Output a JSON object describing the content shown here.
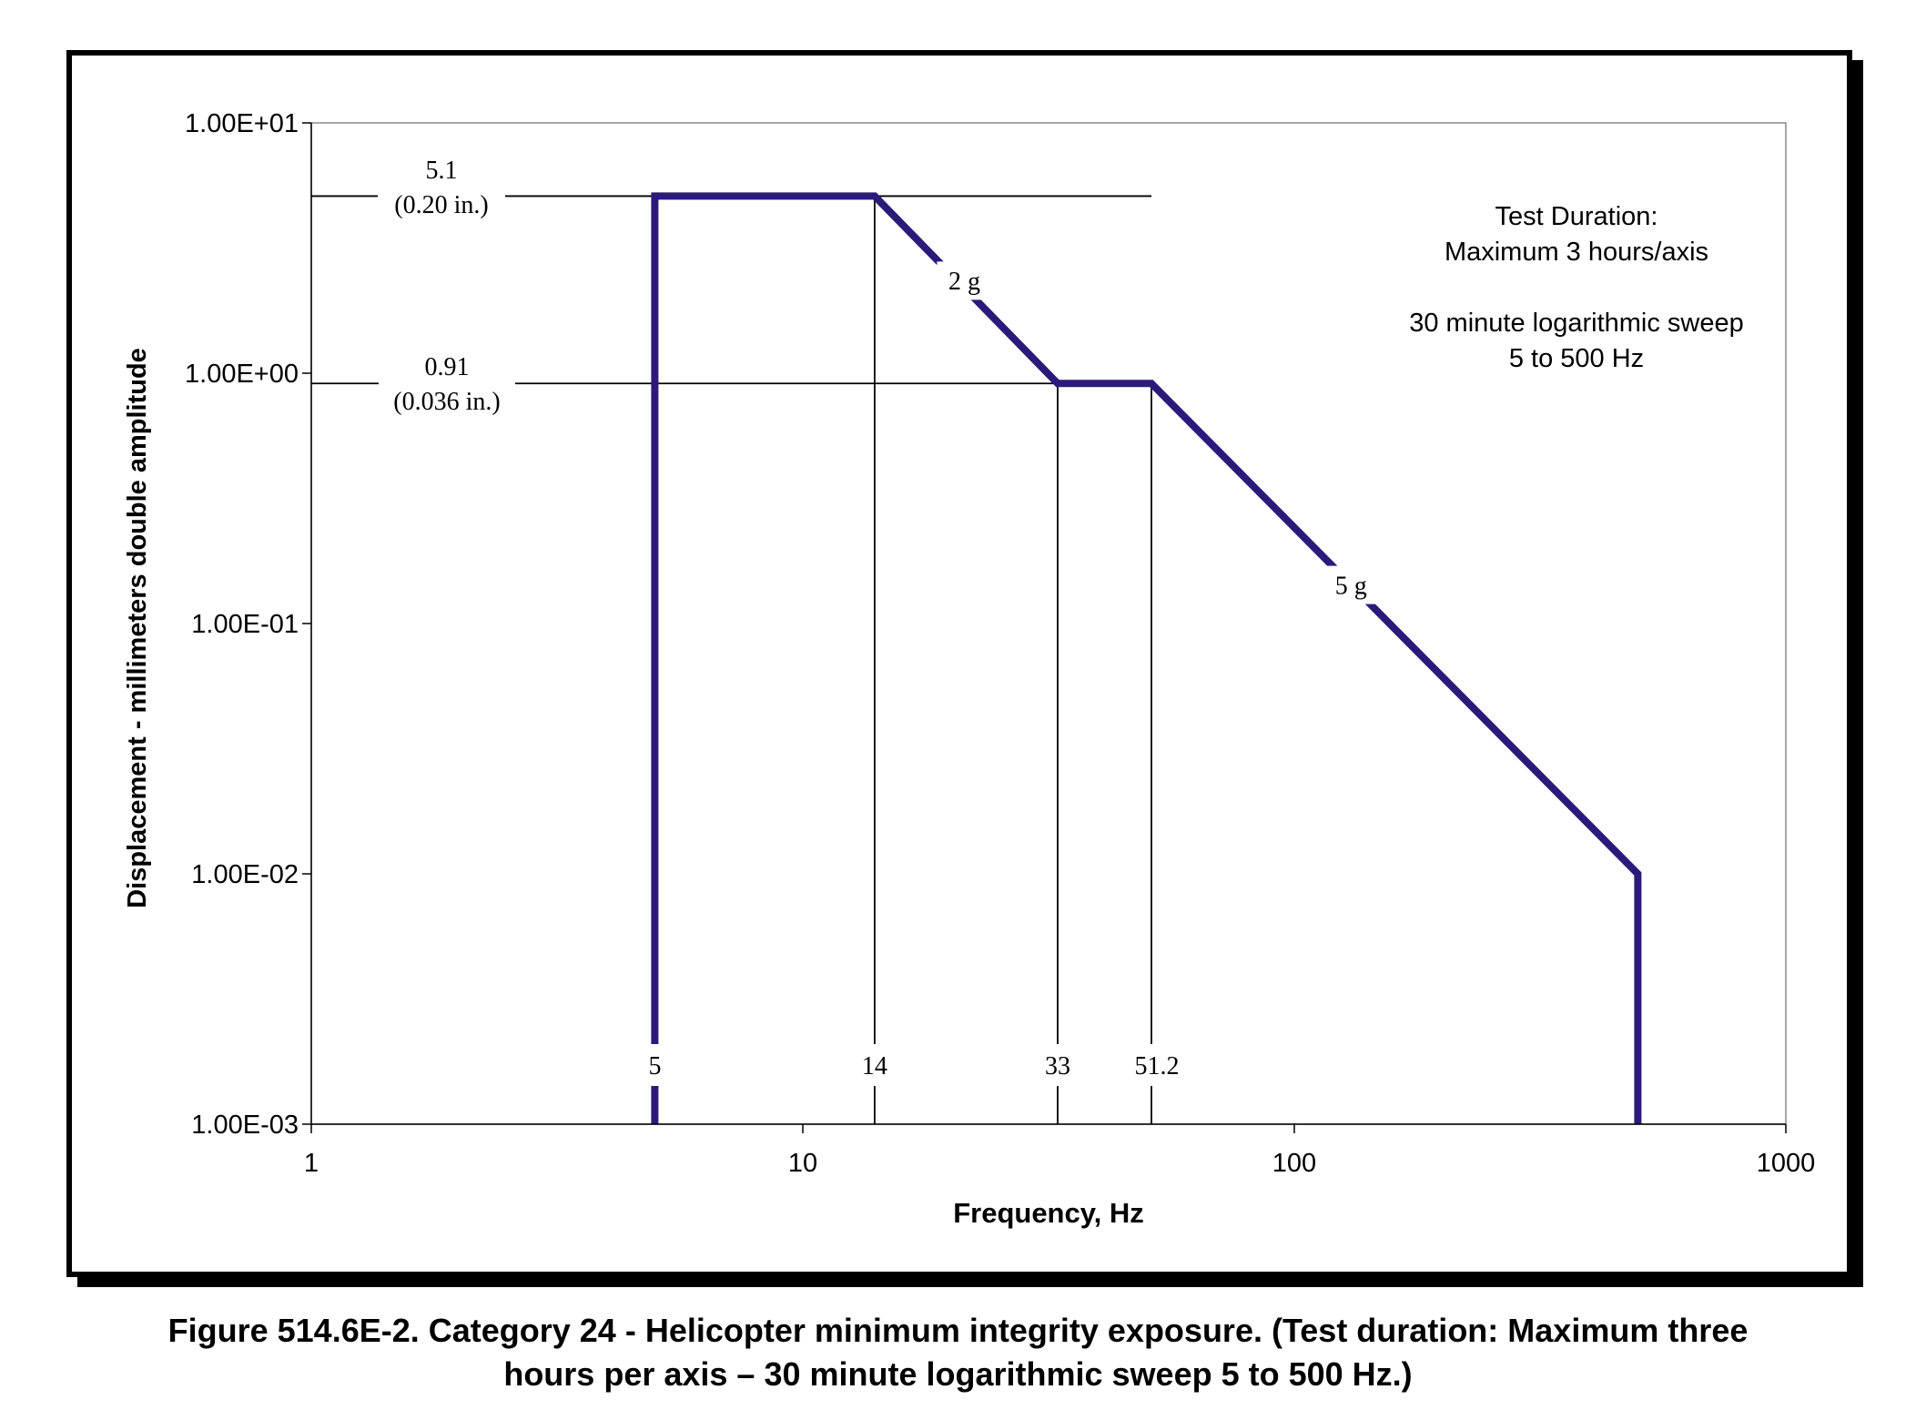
{
  "chart_data": {
    "type": "line",
    "x_scale": "log",
    "y_scale": "log",
    "xlabel": "Frequency, Hz",
    "ylabel": "Displacement - millimeters double amplitude",
    "xlim": [
      1,
      1000
    ],
    "ylim": [
      0.001,
      10
    ],
    "x_ticks": [
      1,
      10,
      100,
      1000
    ],
    "x_tick_labels": [
      "1",
      "10",
      "100",
      "1000"
    ],
    "y_ticks": [
      10,
      1,
      0.1,
      0.01,
      0.001
    ],
    "y_tick_labels": [
      "1.00E+01",
      "1.00E+00",
      "1.00E-01",
      "1.00E-02",
      "1.00E-03"
    ],
    "grid": false,
    "series": [
      {
        "color": "#2b1a7a",
        "points": [
          [
            5,
            0.001
          ],
          [
            5,
            5.1
          ],
          [
            14,
            5.1
          ],
          [
            33,
            0.91
          ],
          [
            51.2,
            0.91
          ],
          [
            500,
            0.01
          ],
          [
            500,
            0.001
          ]
        ]
      }
    ],
    "reference_lines": {
      "horizontal": [
        5.1,
        0.91
      ],
      "vertical": [
        5,
        14,
        33,
        51.2
      ]
    },
    "annotations": {
      "level_high": [
        "5.1",
        "(0.20 in.)"
      ],
      "level_low": [
        "0.91",
        "(0.036 in.)"
      ],
      "slope_2g": "2 g",
      "slope_5g": "5 g",
      "freq_labels": [
        "5",
        "14",
        "33",
        "51.2"
      ],
      "note_lines": [
        "Test Duration:",
        "Maximum 3 hours/axis",
        "",
        "30 minute logarithmic sweep",
        "5 to 500 Hz"
      ]
    }
  },
  "caption_lines": [
    "Figure 514.6E-2.  Category 24 - Helicopter minimum integrity exposure.  (Test duration:  Maximum three",
    "hours per axis – 30 minute logarithmic sweep 5 to 500 Hz.)"
  ]
}
